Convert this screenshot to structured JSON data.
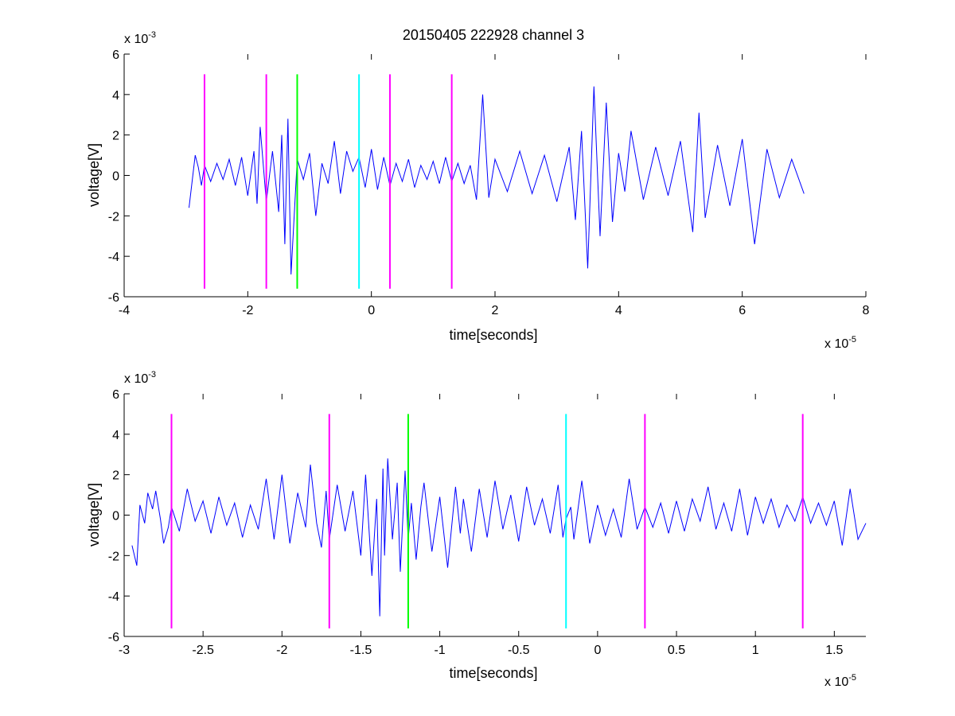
{
  "figure": {
    "title": "20150405 222928 channel 3"
  },
  "chart_data": [
    {
      "type": "line",
      "title": "20150405 222928 channel 3",
      "xlabel": "time[seconds]",
      "ylabel": "voltage[V]",
      "x_multiplier": {
        "base": "x 10",
        "exponent": "-5"
      },
      "y_multiplier": {
        "base": "x 10",
        "exponent": "-3"
      },
      "xlim": [
        -4,
        8
      ],
      "ylim": [
        -6,
        6
      ],
      "x_ticks": [
        "-4",
        "-2",
        "0",
        "2",
        "4",
        "6",
        "8"
      ],
      "y_ticks": [
        "-6",
        "-4",
        "-2",
        "0",
        "2",
        "4",
        "6"
      ],
      "x_tick_values": [
        -4,
        -2,
        0,
        2,
        4,
        6,
        8
      ],
      "y_tick_values": [
        -6,
        -4,
        -2,
        0,
        2,
        4,
        6
      ],
      "grid": false,
      "series": [
        {
          "color": "#0000ff",
          "x": [
            -2.95,
            -2.9,
            -2.85,
            -2.8,
            -2.75,
            -2.7,
            -2.6,
            -2.5,
            -2.4,
            -2.3,
            -2.2,
            -2.1,
            -2.0,
            -1.9,
            -1.85,
            -1.8,
            -1.7,
            -1.6,
            -1.5,
            -1.45,
            -1.4,
            -1.35,
            -1.3,
            -1.2,
            -1.1,
            -1.0,
            -0.9,
            -0.8,
            -0.7,
            -0.6,
            -0.5,
            -0.4,
            -0.3,
            -0.2,
            -0.1,
            0.0,
            0.1,
            0.2,
            0.3,
            0.4,
            0.5,
            0.6,
            0.7,
            0.8,
            0.9,
            1.0,
            1.1,
            1.2,
            1.3,
            1.4,
            1.5,
            1.6,
            1.7,
            1.8,
            1.9,
            2.0,
            2.2,
            2.4,
            2.6,
            2.8,
            3.0,
            3.2,
            3.3,
            3.4,
            3.5,
            3.6,
            3.7,
            3.8,
            3.9,
            4.0,
            4.1,
            4.2,
            4.4,
            4.6,
            4.8,
            5.0,
            5.2,
            5.3,
            5.4,
            5.6,
            5.8,
            6.0,
            6.2,
            6.4,
            6.6,
            6.8,
            7.0
          ],
          "y": [
            -1.6,
            -0.3,
            1.0,
            0.4,
            -0.5,
            0.5,
            -0.3,
            0.6,
            -0.2,
            0.8,
            -0.5,
            0.9,
            -1.0,
            1.2,
            -1.4,
            2.4,
            -1.3,
            1.2,
            -1.8,
            2.0,
            -3.4,
            2.8,
            -4.9,
            0.8,
            -0.2,
            1.1,
            -2.0,
            0.6,
            -0.4,
            1.7,
            -0.9,
            1.2,
            0.2,
            0.9,
            -0.6,
            1.3,
            -0.7,
            0.9,
            -0.5,
            0.6,
            -0.3,
            0.8,
            -0.6,
            0.5,
            -0.2,
            0.7,
            -0.4,
            0.9,
            -0.3,
            0.6,
            -0.4,
            0.5,
            -1.2,
            4.0,
            -1.1,
            0.8,
            -0.8,
            1.2,
            -0.9,
            1.0,
            -1.3,
            1.4,
            -2.2,
            2.2,
            -4.6,
            4.4,
            -3.0,
            3.6,
            -2.3,
            1.1,
            -0.8,
            2.2,
            -1.2,
            1.4,
            -1.0,
            1.7,
            -2.8,
            3.1,
            -2.1,
            1.5,
            -1.5,
            1.8,
            -3.4,
            1.3,
            -1.1,
            0.8,
            -0.9
          ]
        }
      ],
      "markers": [
        {
          "x": -2.7,
          "color": "#ff00ff"
        },
        {
          "x": -1.7,
          "color": "#ff00ff"
        },
        {
          "x": -1.2,
          "color": "#00ff00"
        },
        {
          "x": -0.2,
          "color": "#00ffff"
        },
        {
          "x": 0.3,
          "color": "#ff00ff"
        },
        {
          "x": 1.3,
          "color": "#ff00ff"
        }
      ],
      "marker_range": [
        -5.6,
        5.0
      ]
    },
    {
      "type": "line",
      "title": "",
      "xlabel": "time[seconds]",
      "ylabel": "voltage[V]",
      "x_multiplier": {
        "base": "x 10",
        "exponent": "-5"
      },
      "y_multiplier": {
        "base": "x 10",
        "exponent": "-3"
      },
      "xlim": [
        -3.0,
        1.7
      ],
      "ylim": [
        -6,
        6
      ],
      "x_ticks": [
        "-3",
        "-2.5",
        "-2",
        "-1.5",
        "-1",
        "-0.5",
        "0",
        "0.5",
        "1",
        "1.5"
      ],
      "y_ticks": [
        "-6",
        "-4",
        "-2",
        "0",
        "2",
        "4",
        "6"
      ],
      "x_tick_values": [
        -3,
        -2.5,
        -2,
        -1.5,
        -1,
        -0.5,
        0,
        0.5,
        1,
        1.5
      ],
      "y_tick_values": [
        -6,
        -4,
        -2,
        0,
        2,
        4,
        6
      ],
      "grid": false,
      "series": [
        {
          "color": "#0000ff",
          "x": [
            -2.95,
            -2.92,
            -2.9,
            -2.87,
            -2.85,
            -2.82,
            -2.8,
            -2.77,
            -2.75,
            -2.72,
            -2.7,
            -2.65,
            -2.6,
            -2.55,
            -2.5,
            -2.45,
            -2.4,
            -2.35,
            -2.3,
            -2.25,
            -2.2,
            -2.15,
            -2.1,
            -2.05,
            -2.0,
            -1.95,
            -1.9,
            -1.85,
            -1.82,
            -1.78,
            -1.75,
            -1.72,
            -1.7,
            -1.65,
            -1.6,
            -1.55,
            -1.5,
            -1.47,
            -1.43,
            -1.4,
            -1.38,
            -1.36,
            -1.35,
            -1.33,
            -1.3,
            -1.27,
            -1.25,
            -1.22,
            -1.2,
            -1.18,
            -1.15,
            -1.12,
            -1.1,
            -1.05,
            -1.0,
            -0.95,
            -0.9,
            -0.87,
            -0.85,
            -0.8,
            -0.75,
            -0.7,
            -0.65,
            -0.6,
            -0.55,
            -0.5,
            -0.45,
            -0.4,
            -0.35,
            -0.3,
            -0.25,
            -0.22,
            -0.2,
            -0.17,
            -0.15,
            -0.1,
            -0.05,
            0.0,
            0.05,
            0.1,
            0.15,
            0.2,
            0.25,
            0.3,
            0.35,
            0.4,
            0.45,
            0.5,
            0.55,
            0.6,
            0.65,
            0.7,
            0.75,
            0.8,
            0.85,
            0.9,
            0.95,
            1.0,
            1.05,
            1.1,
            1.15,
            1.2,
            1.25,
            1.3,
            1.35,
            1.4,
            1.45,
            1.5,
            1.55,
            1.6,
            1.65,
            1.7
          ],
          "y": [
            -1.5,
            -2.5,
            0.5,
            -0.4,
            1.1,
            0.3,
            1.2,
            -0.2,
            -1.4,
            -0.6,
            0.4,
            -0.8,
            1.3,
            -0.3,
            0.7,
            -0.9,
            0.9,
            -0.5,
            0.6,
            -1.1,
            0.5,
            -0.7,
            1.8,
            -1.2,
            2.0,
            -1.4,
            1.1,
            -0.6,
            2.5,
            -0.4,
            -1.6,
            1.2,
            -1.2,
            1.5,
            -0.8,
            1.2,
            -2.0,
            2.0,
            -3.0,
            0.8,
            -5.0,
            2.3,
            -2.0,
            2.8,
            -1.2,
            1.6,
            -2.8,
            2.2,
            -1.2,
            0.6,
            -2.2,
            0.4,
            1.6,
            -1.8,
            0.9,
            -2.6,
            1.4,
            -0.9,
            0.8,
            -1.8,
            1.3,
            -1.1,
            1.7,
            -0.7,
            1.0,
            -1.3,
            1.4,
            -0.5,
            0.8,
            -0.9,
            1.5,
            -1.1,
            -0.2,
            0.4,
            -1.2,
            1.7,
            -1.4,
            0.5,
            -1.0,
            0.3,
            -1.1,
            1.8,
            -0.7,
            0.4,
            -0.6,
            0.6,
            -0.9,
            0.7,
            -0.8,
            0.8,
            -0.3,
            1.4,
            -0.7,
            0.6,
            -0.8,
            1.3,
            -1.0,
            0.9,
            -0.4,
            0.8,
            -0.6,
            0.5,
            -0.3,
            0.9,
            -0.4,
            0.6,
            -0.5,
            0.7,
            -1.5,
            1.3,
            -1.2,
            -0.4
          ]
        }
      ],
      "markers": [
        {
          "x": -2.7,
          "color": "#ff00ff"
        },
        {
          "x": -1.7,
          "color": "#ff00ff"
        },
        {
          "x": -1.2,
          "color": "#00ff00"
        },
        {
          "x": -0.2,
          "color": "#00ffff"
        },
        {
          "x": 0.3,
          "color": "#ff00ff"
        },
        {
          "x": 1.3,
          "color": "#ff00ff"
        }
      ],
      "marker_range": [
        -5.6,
        5.0
      ]
    }
  ]
}
